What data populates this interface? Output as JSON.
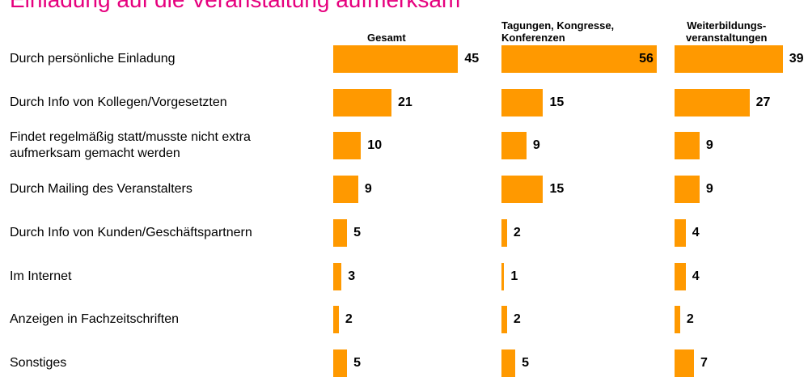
{
  "chart_data": {
    "type": "bar",
    "orientation": "horizontal",
    "title": "Einladung auf die Veranstaltung aufmerksam",
    "categories": [
      "Durch persönliche Einladung",
      "Durch Info von Kollegen/Vorgesetzten",
      "Findet regelmäßig statt/musste nicht extra\naufmerksam gemacht werden",
      "Durch Mailing des Veranstalters",
      "Durch Info von Kunden/Geschäftspartnern",
      "Im Internet",
      "Anzeigen in Fachzeitschriften",
      "Sonstiges"
    ],
    "series": [
      {
        "name": "Gesamt",
        "color": "#ff9900",
        "values": [
          45,
          21,
          10,
          9,
          5,
          3,
          2,
          5
        ]
      },
      {
        "name": "Tagungen, Kongresse,\nKonferenzen",
        "color": "#ff9900",
        "values": [
          56,
          15,
          9,
          15,
          2,
          1,
          2,
          5
        ]
      },
      {
        "name": "Weiterbildungs-\nveranstaltungen",
        "color": "#ff9900",
        "values": [
          39,
          27,
          9,
          9,
          4,
          4,
          2,
          7
        ]
      }
    ]
  }
}
